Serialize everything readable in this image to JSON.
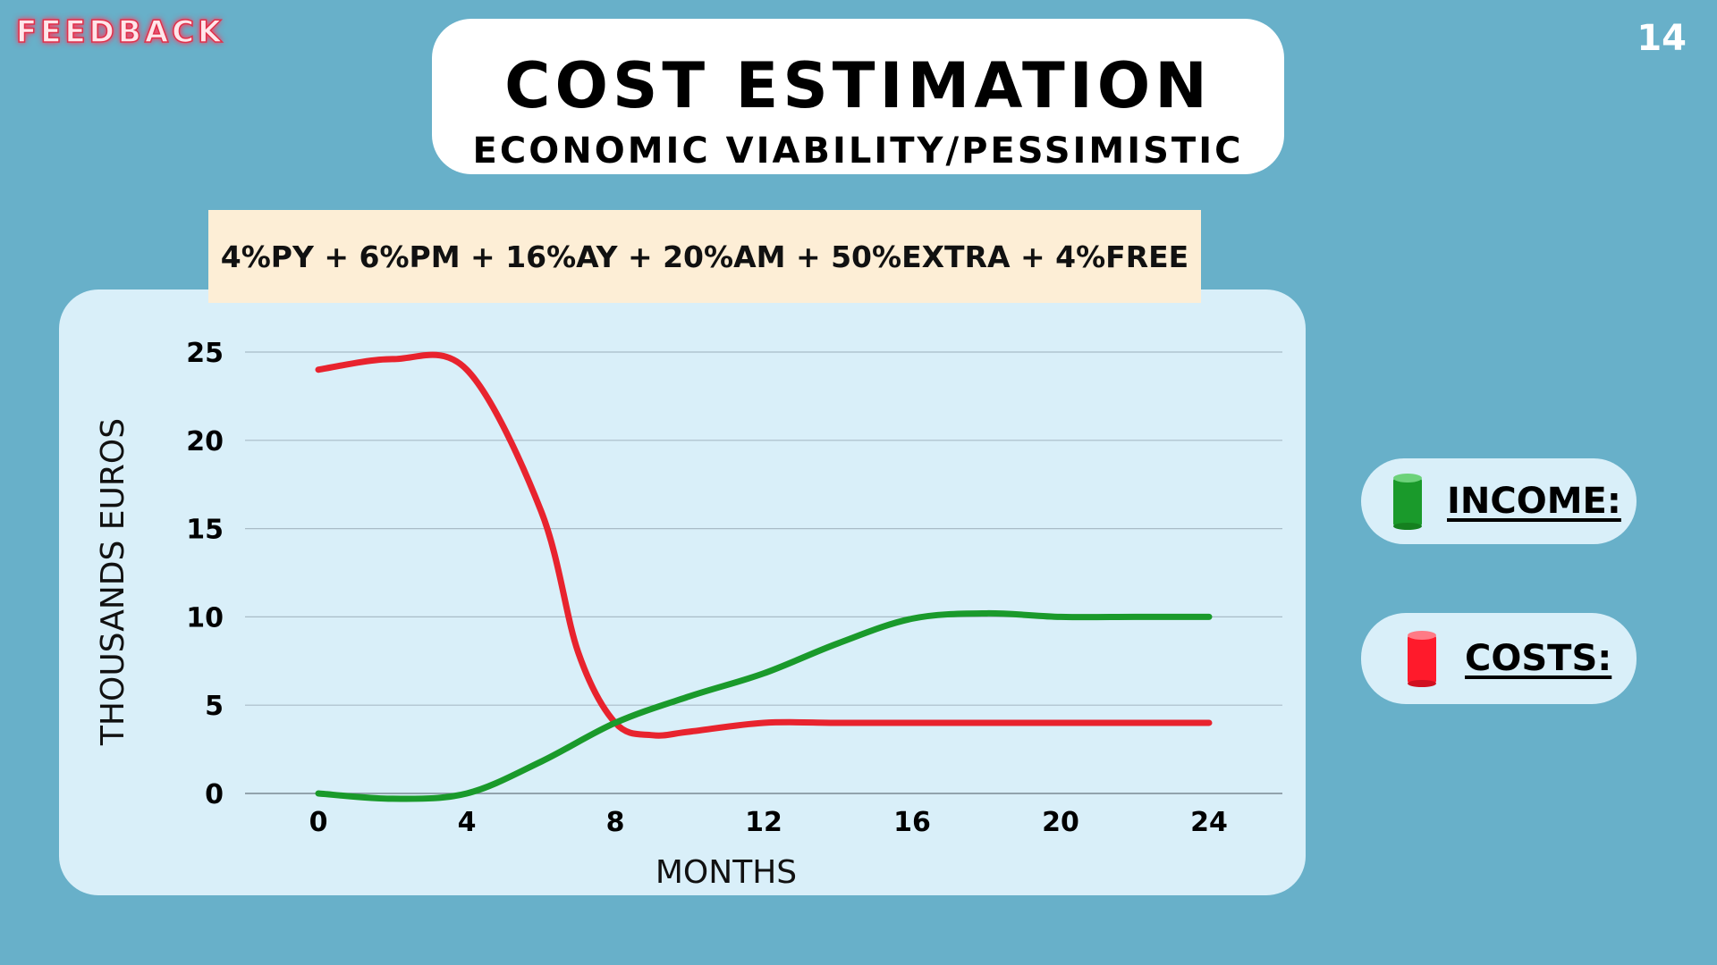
{
  "header": {
    "feedback_label": "FEEDBACK",
    "page_number": "14",
    "title": "COST ESTIMATION",
    "subtitle": "ECONOMIC VIABILITY/PESSIMISTIC"
  },
  "formula": "4%PY + 6%PM + 16%AY + 20%AM + 50%EXTRA + 4%FREE",
  "legend": [
    {
      "label": "INCOME:",
      "color": "#1a9a2b"
    },
    {
      "label": "COSTS:",
      "color": "#e8232e"
    }
  ],
  "colors": {
    "background": "#68b0c9",
    "panel": "#d9eff9",
    "income": "#1a9a2b",
    "costs": "#e8232e"
  },
  "chart_data": {
    "type": "line",
    "xlabel": "MONTHS",
    "ylabel": "THOUSANDS EUROS",
    "x_ticks": [
      0,
      4,
      8,
      12,
      16,
      20,
      24
    ],
    "y_ticks": [
      0,
      5,
      10,
      15,
      20,
      25
    ],
    "xlim": [
      0,
      24
    ],
    "ylim": [
      0,
      25
    ],
    "grid": "horizontal",
    "series": [
      {
        "name": "INCOME",
        "color": "#1a9a2b",
        "x": [
          0,
          2,
          4,
          6,
          8,
          10,
          12,
          14,
          16,
          18,
          20,
          22,
          24
        ],
        "y": [
          0,
          -0.3,
          0,
          1.8,
          4,
          5.5,
          6.8,
          8.5,
          9.9,
          10.2,
          10,
          10,
          10
        ]
      },
      {
        "name": "COSTS",
        "color": "#e8232e",
        "x": [
          0,
          2,
          4,
          6,
          7,
          8,
          9,
          10,
          12,
          14,
          16,
          18,
          20,
          22,
          24
        ],
        "y": [
          24,
          24.6,
          24,
          16,
          8,
          4,
          3.3,
          3.5,
          4,
          4,
          4,
          4,
          4,
          4,
          4
        ]
      }
    ]
  }
}
